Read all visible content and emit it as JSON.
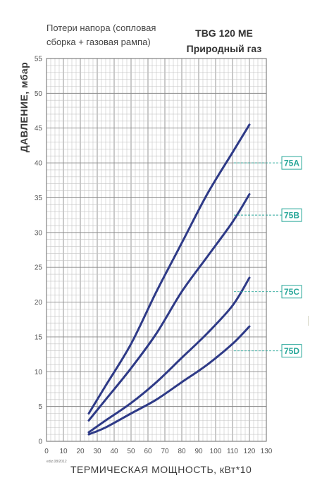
{
  "header": {
    "subtitle_line1": "Потери напора (сопловая",
    "subtitle_line2": "сборка + газовая рампа)",
    "model": "TBG 120 ME",
    "fuel": "Природный газ"
  },
  "footnote": "ediz.08/2012",
  "chart_data": {
    "type": "line",
    "title": "TBG 120 ME — Природный газ",
    "xlabel": "ТЕРМИЧЕСКАЯ МОЩНОСТЬ, кВт*10",
    "ylabel": "ДАВЛЕНИЕ, мбар",
    "xlim": [
      0,
      130
    ],
    "ylim": [
      0,
      55
    ],
    "xticks": [
      "0",
      "10",
      "20",
      "30",
      "40",
      "50",
      "60",
      "70",
      "80",
      "90",
      "100",
      "110",
      "120",
      "130"
    ],
    "yticks": [
      "0",
      "5",
      "10",
      "15",
      "20",
      "25",
      "30",
      "35",
      "40",
      "45",
      "50",
      "55"
    ],
    "grid": true,
    "line_color": "#2e3a87",
    "label_color": "#2aa89a",
    "series": [
      {
        "name": "75A",
        "x": [
          25,
          35,
          50,
          65,
          80,
          95,
          110,
          120
        ],
        "y": [
          4.0,
          8.0,
          14.0,
          21.5,
          28.5,
          35.5,
          41.5,
          45.5
        ],
        "label_y": 40.0
      },
      {
        "name": "75B",
        "x": [
          25,
          35,
          50,
          65,
          80,
          95,
          110,
          120
        ],
        "y": [
          3.0,
          6.0,
          10.5,
          15.5,
          21.5,
          26.5,
          31.5,
          35.5
        ],
        "label_y": 32.5
      },
      {
        "name": "75C",
        "x": [
          25,
          35,
          50,
          65,
          80,
          95,
          110,
          120
        ],
        "y": [
          1.3,
          3.0,
          5.5,
          8.5,
          12.0,
          15.5,
          19.5,
          23.5
        ],
        "label_y": 21.5
      },
      {
        "name": "75D",
        "x": [
          25,
          35,
          50,
          65,
          80,
          95,
          110,
          120
        ],
        "y": [
          1.0,
          2.0,
          4.0,
          6.0,
          8.5,
          11.0,
          14.0,
          16.5
        ],
        "label_y": 13.0
      }
    ]
  }
}
